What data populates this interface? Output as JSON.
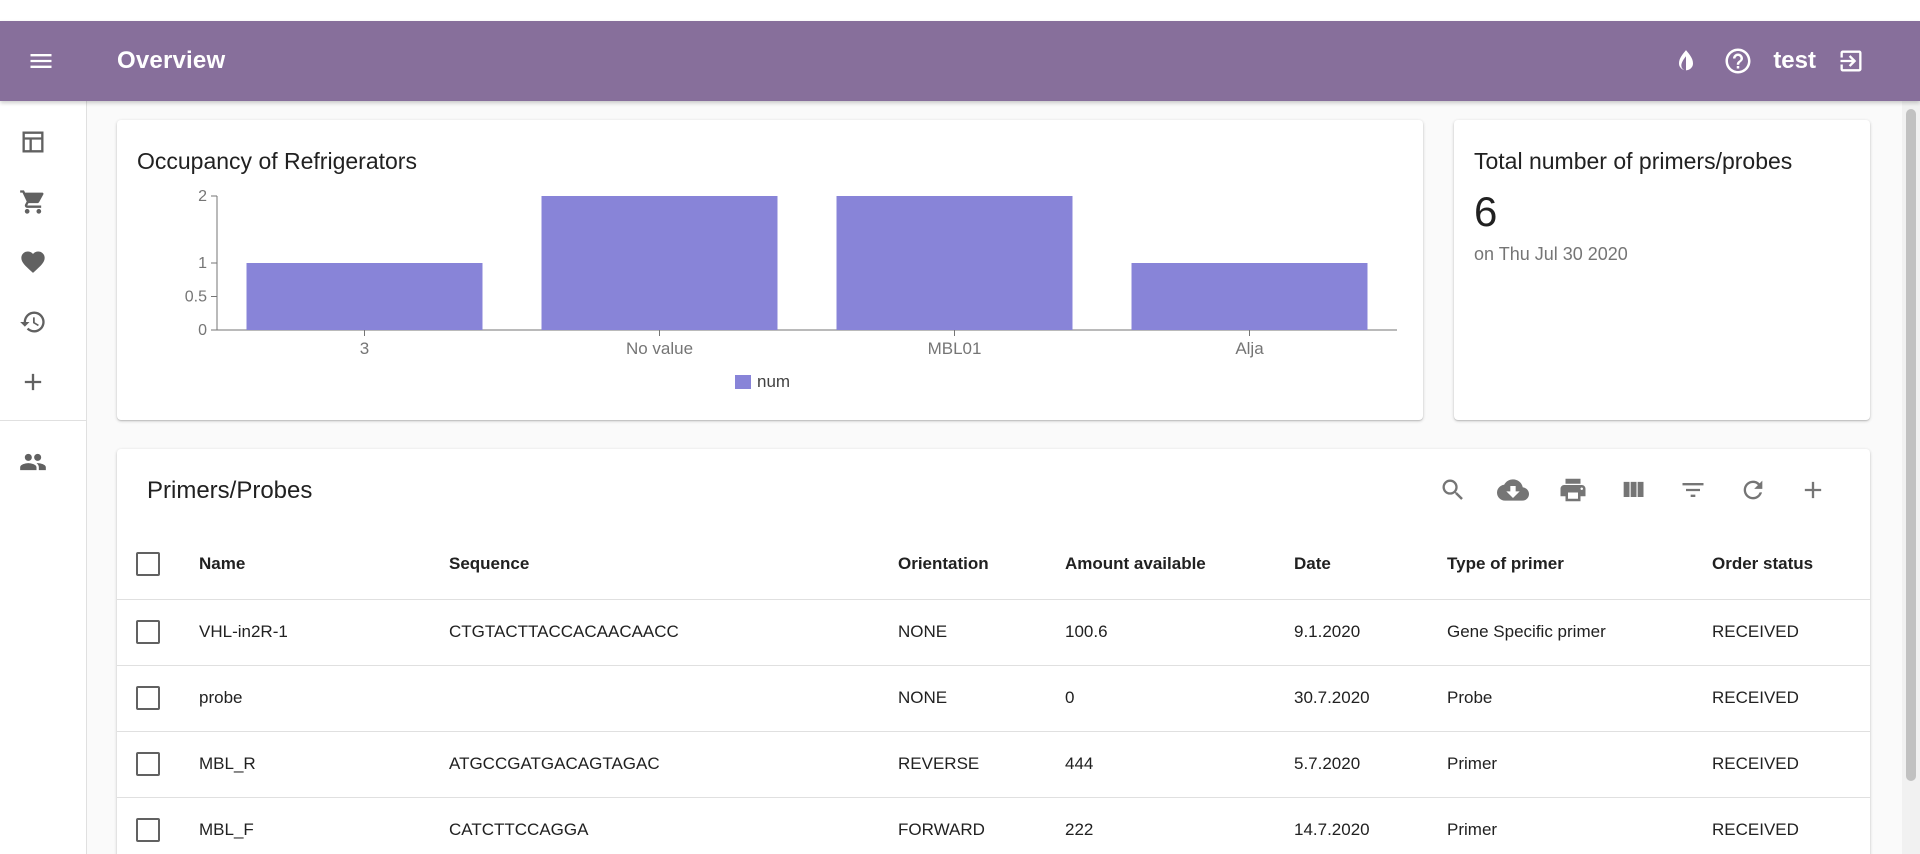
{
  "appbar": {
    "title": "Overview",
    "user": "test"
  },
  "chart_data": {
    "type": "bar",
    "title": "Occupancy of Refrigerators",
    "categories": [
      "3",
      "No value",
      "MBL01",
      "Alja"
    ],
    "series": [
      {
        "name": "num",
        "values": [
          1,
          2,
          2,
          1
        ]
      }
    ],
    "yticks": [
      0,
      0.5,
      1,
      2
    ],
    "ylim": [
      0,
      2
    ],
    "xlabel": "",
    "ylabel": "",
    "legend": "bottom-center",
    "grid": false,
    "color": "#8884d8"
  },
  "stat": {
    "title": "Total number of primers/probes",
    "value": "6",
    "date": "on Thu Jul 30 2020"
  },
  "table": {
    "title": "Primers/Probes",
    "columns": [
      "Name",
      "Sequence",
      "Orientation",
      "Amount available",
      "Date",
      "Type of primer",
      "Order status"
    ],
    "rows": [
      [
        "VHL-in2R-1",
        "CTGTACTTACCACAACAACC",
        "NONE",
        "100.6",
        "9.1.2020",
        "Gene Specific primer",
        "RECEIVED"
      ],
      [
        "probe",
        "",
        "NONE",
        "0",
        "30.7.2020",
        "Probe",
        "RECEIVED"
      ],
      [
        "MBL_R",
        "ATGCCGATGACAGTAGAC",
        "REVERSE",
        "444",
        "5.7.2020",
        "Primer",
        "RECEIVED"
      ],
      [
        "MBL_F",
        "CATCTTCCAGGA",
        "FORWARD",
        "222",
        "14.7.2020",
        "Primer",
        "RECEIVED"
      ]
    ]
  },
  "colors": {
    "appbar": "#876f9b",
    "bar": "#8884d8"
  }
}
